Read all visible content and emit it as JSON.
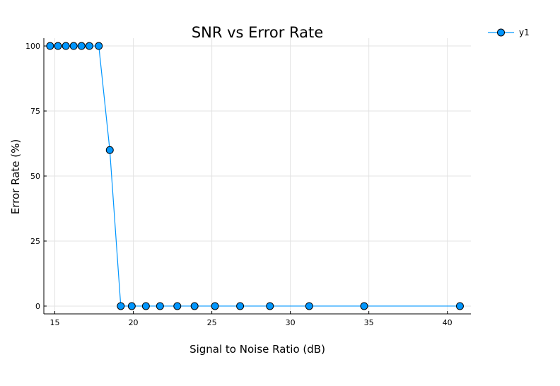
{
  "chart_data": {
    "type": "line",
    "title": "SNR vs Error Rate",
    "xlabel": "Signal to Noise Ratio (dB)",
    "ylabel": "Error Rate (%)",
    "xlim": [
      14.3,
      41.5
    ],
    "ylim": [
      -3,
      103
    ],
    "xticks": [
      15,
      20,
      25,
      30,
      35,
      40
    ],
    "yticks": [
      0,
      25,
      50,
      75,
      100
    ],
    "grid": true,
    "legend": "top-right",
    "series": [
      {
        "name": "y1",
        "color": "#0096ff",
        "marker_fill": "#0096ff",
        "marker_edge": "#000000",
        "x": [
          14.7,
          15.2,
          15.7,
          16.2,
          16.7,
          17.2,
          17.8,
          18.5,
          19.2,
          19.9,
          20.8,
          21.7,
          22.8,
          23.9,
          25.2,
          26.8,
          28.7,
          31.2,
          34.7,
          40.8
        ],
        "values": [
          100,
          100,
          100,
          100,
          100,
          100,
          100,
          60,
          0,
          0,
          0,
          0,
          0,
          0,
          0,
          0,
          0,
          0,
          0,
          0
        ]
      }
    ]
  }
}
